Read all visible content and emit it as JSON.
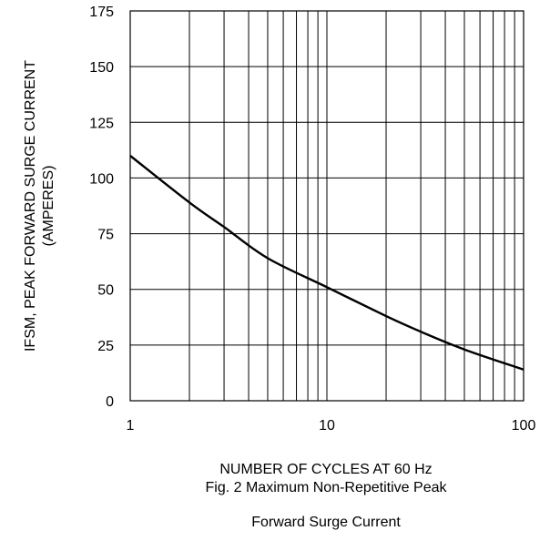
{
  "chart_data": {
    "type": "line",
    "x_scale": "log",
    "xlim": [
      1,
      100
    ],
    "ylim": [
      0,
      175
    ],
    "x_ticks": [
      "1",
      "10",
      "100"
    ],
    "y_ticks": [
      "0",
      "25",
      "50",
      "75",
      "100",
      "125",
      "150",
      "175"
    ],
    "ylabel_line1": "IFSM, PEAK FORWARD SURGE CURRENT",
    "ylabel_line2": "(AMPERES)",
    "xlabel": "NUMBER OF CYCLES AT 60 Hz",
    "caption_line1": "Fig. 2  Maximum Non-Repetitive Peak",
    "caption_line2": "Forward Surge Current",
    "grid": true,
    "series": [
      {
        "x": [
          1,
          2,
          3,
          5,
          10,
          20,
          30,
          50,
          100
        ],
        "y": [
          110,
          89,
          78,
          64,
          51,
          38,
          31,
          23,
          14
        ]
      }
    ]
  }
}
